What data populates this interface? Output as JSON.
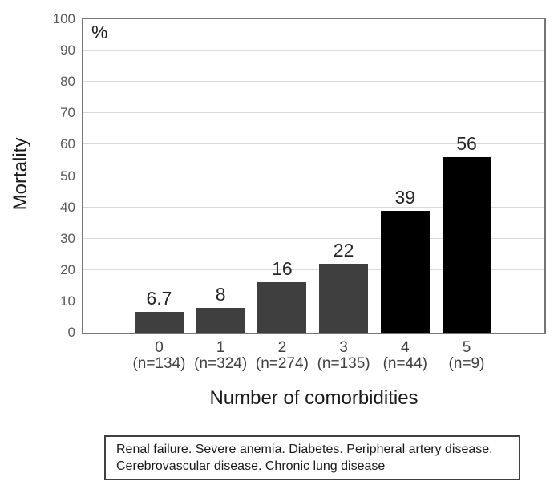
{
  "chart_data": {
    "type": "bar",
    "title": "",
    "unit_label": "%",
    "ylabel": "Mortality",
    "xlabel": "Number of comorbidities",
    "ylim": [
      0,
      100
    ],
    "ytick_step": 10,
    "grid": true,
    "categories": [
      "0",
      "1",
      "2",
      "3",
      "4",
      "5"
    ],
    "category_sublabels": [
      "(n=134)",
      "(n=324)",
      "(n=274)",
      "(n=135)",
      "(n=44)",
      "(n=9)"
    ],
    "values": [
      6.7,
      8,
      16,
      22,
      39,
      56
    ],
    "value_labels": [
      "6.7",
      "8",
      "16",
      "22",
      "39",
      "56"
    ],
    "bar_colors": [
      "#3f3f3f",
      "#3f3f3f",
      "#3f3f3f",
      "#3f3f3f",
      "#000000",
      "#000000"
    ],
    "gridline_color": "#d9d9d9",
    "axis_color": "#757575",
    "ytick_label_color": "#595959",
    "xtick_label_color": "#404040",
    "legend": "none"
  },
  "footnote": {
    "text": "Renal failure. Severe anemia. Diabetes. Peripheral artery disease. Cerebrovascular disease. Chronic lung disease"
  }
}
